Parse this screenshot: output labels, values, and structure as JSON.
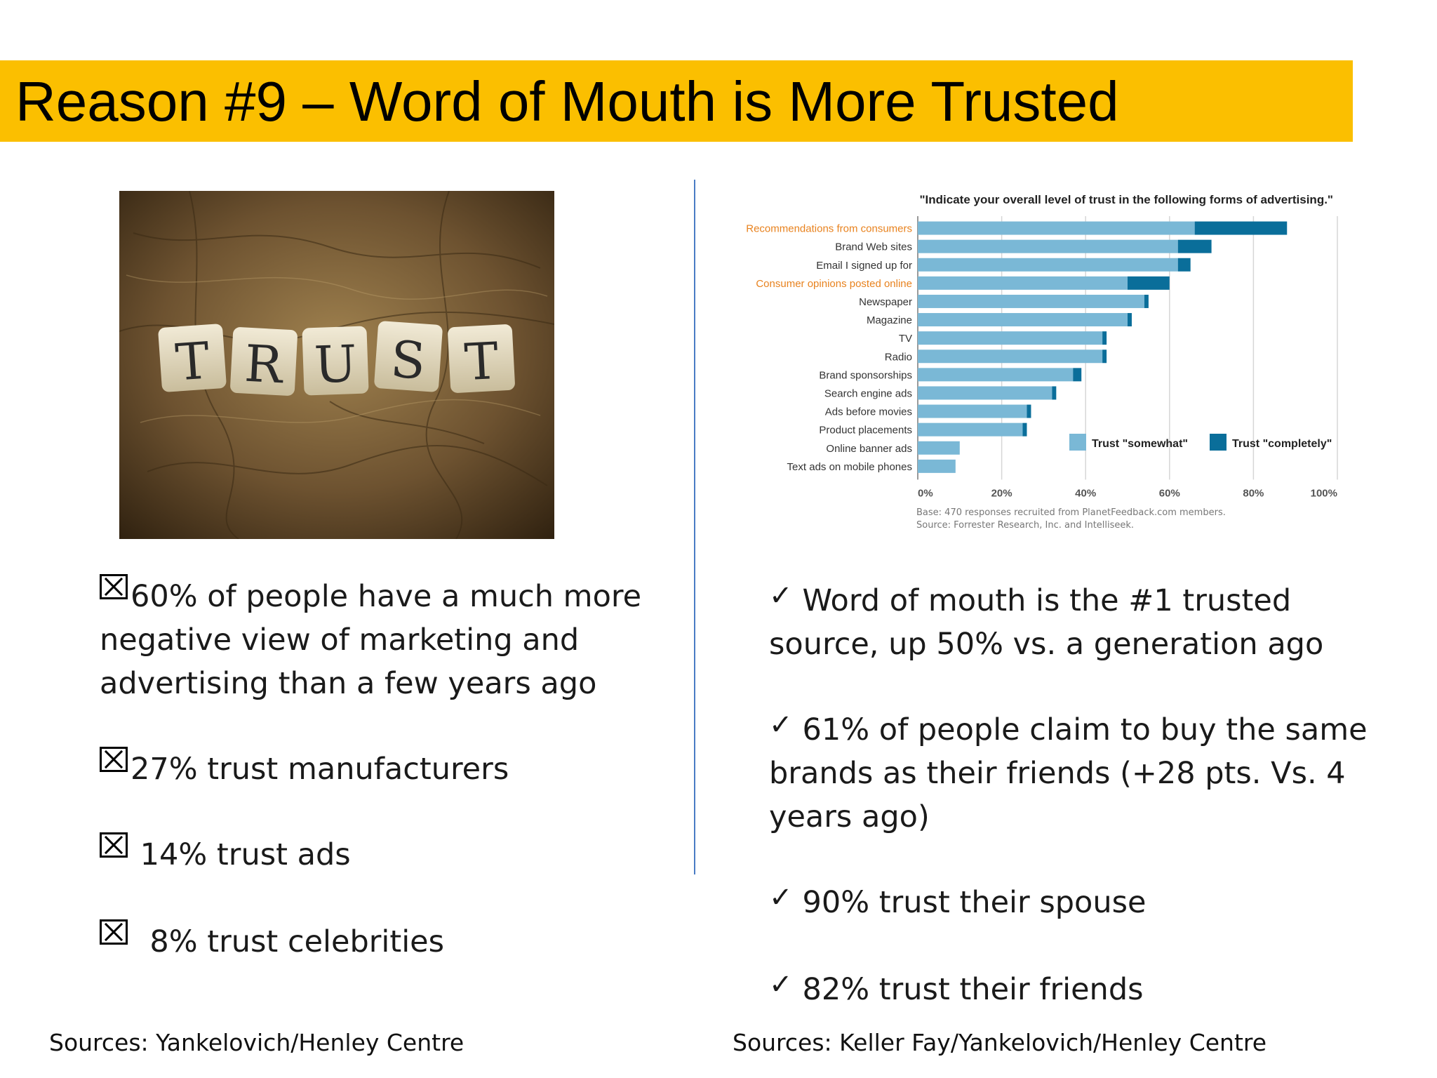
{
  "slide": {
    "title": "Reason #9 – Word of Mouth is More Trusted"
  },
  "photo": {
    "tiles": [
      "T",
      "R",
      "U",
      "S",
      "T"
    ]
  },
  "left_bullets": [
    {
      "mark": "x-box-icon",
      "lines": [
        "60% of people have a much more",
        "negative view of marketing and",
        "advertising than a few years ago"
      ]
    },
    {
      "mark": "x-box-icon",
      "lines": [
        "27% trust manufacturers"
      ]
    },
    {
      "mark": "x-box-icon",
      "lines": [
        " 14% trust ads"
      ]
    },
    {
      "mark": "x-box-icon",
      "lines": [
        "  8% trust celebrities"
      ]
    }
  ],
  "right_bullets": [
    {
      "mark": "✓",
      "lines": [
        "Word of mouth is the #1 trusted",
        "source, up 50% vs. a generation ago"
      ]
    },
    {
      "mark": "✓",
      "lines": [
        "61% of people claim to buy the same",
        "brands as their friends (+28 pts. Vs. 4",
        "years ago)"
      ]
    },
    {
      "mark": "✓",
      "lines": [
        "90% trust their spouse"
      ]
    },
    {
      "mark": "✓",
      "lines": [
        "82% trust their friends"
      ]
    }
  ],
  "sources": {
    "left": "Sources: Yankelovich/Henley Centre",
    "right": "Sources: Keller Fay/Yankelovich/Henley Centre"
  },
  "chart_data": {
    "type": "bar",
    "orientation": "horizontal",
    "stacked": true,
    "title": "\"Indicate your overall level of trust in the following forms of advertising.\"",
    "categories": [
      "Recommendations from consumers",
      "Brand Web sites",
      "Email I signed up for",
      "Consumer opinions posted online",
      "Newspaper",
      "Magazine",
      "TV",
      "Radio",
      "Brand sponsorships",
      "Search engine ads",
      "Ads before movies",
      "Product placements",
      "Online banner ads",
      "Text ads on mobile phones"
    ],
    "highlighted_categories": [
      "Recommendations from consumers",
      "Consumer opinions posted online"
    ],
    "series": [
      {
        "name": "Trust \"somewhat\"",
        "color": "#7ab8d6",
        "values": [
          66,
          62,
          62,
          50,
          54,
          50,
          44,
          44,
          37,
          32,
          26,
          25,
          10,
          9
        ]
      },
      {
        "name": "Trust \"completely\"",
        "color": "#0a6e9a",
        "values": [
          22,
          8,
          3,
          10,
          1,
          1,
          1,
          1,
          2,
          1,
          1,
          1,
          0,
          0
        ]
      }
    ],
    "x_ticks": [
      "0%",
      "20%",
      "40%",
      "60%",
      "80%",
      "100%"
    ],
    "xlim": [
      0,
      100
    ],
    "grid": true,
    "legend_position": "bottom-right",
    "notes": [
      "Base: 470 responses recruited from PlanetFeedback.com members.",
      "Source: Forrester Research, Inc. and Intelliseek."
    ],
    "colors": {
      "highlight_label": "#e8821e",
      "label": "#333333"
    }
  }
}
